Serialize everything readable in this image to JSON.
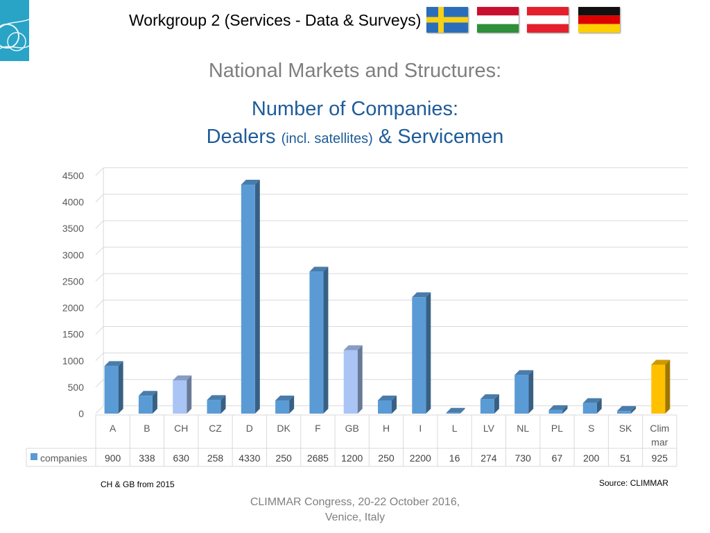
{
  "header": {
    "workgroup_title": "Workgroup 2 (Services - Data & Surveys)",
    "flags": [
      "sweden-flag",
      "hungary-flag",
      "austria-flag",
      "germany-flag"
    ]
  },
  "slide": {
    "heading": "National Markets and Structures:",
    "subtitle_line1": "Number of Companies:",
    "subtitle_line2_main": "Dealers",
    "subtitle_line2_small": "(incl. satellites)",
    "subtitle_line2_end": "& Servicemen"
  },
  "notes": {
    "left": "CH & GB from 2015",
    "right": "Source: CLIMMAR"
  },
  "footer": {
    "line1": "CLIMMAR Congress, 20-22 October 2016,",
    "line2": "Venice, Italy"
  },
  "colors": {
    "bar_default": "#5b9bd5",
    "bar_2015": "#a9c4f5",
    "bar_climmar": "#ffc000",
    "title_blue": "#1f5c99",
    "gray_text": "#7f7f7f"
  },
  "chart_data": {
    "type": "bar",
    "categories": [
      "A",
      "B",
      "CH",
      "CZ",
      "D",
      "DK",
      "F",
      "GB",
      "H",
      "I",
      "L",
      "LV",
      "NL",
      "PL",
      "S",
      "SK",
      "Clim mar"
    ],
    "series": [
      {
        "name": "companies",
        "values": [
          900,
          338,
          630,
          258,
          4330,
          250,
          2685,
          1200,
          250,
          2200,
          16,
          274,
          730,
          67,
          200,
          51,
          925
        ]
      }
    ],
    "bar_color_groups": [
      "default",
      "default",
      "2015",
      "default",
      "default",
      "default",
      "default",
      "2015",
      "default",
      "default",
      "default",
      "default",
      "default",
      "default",
      "default",
      "default",
      "climmar"
    ],
    "ylim": [
      0,
      4500
    ],
    "yticks": [
      0,
      500,
      1000,
      1500,
      2000,
      2500,
      3000,
      3500,
      4000,
      4500
    ],
    "grid": true,
    "legend_placement": "data table, left",
    "data_table": true
  }
}
